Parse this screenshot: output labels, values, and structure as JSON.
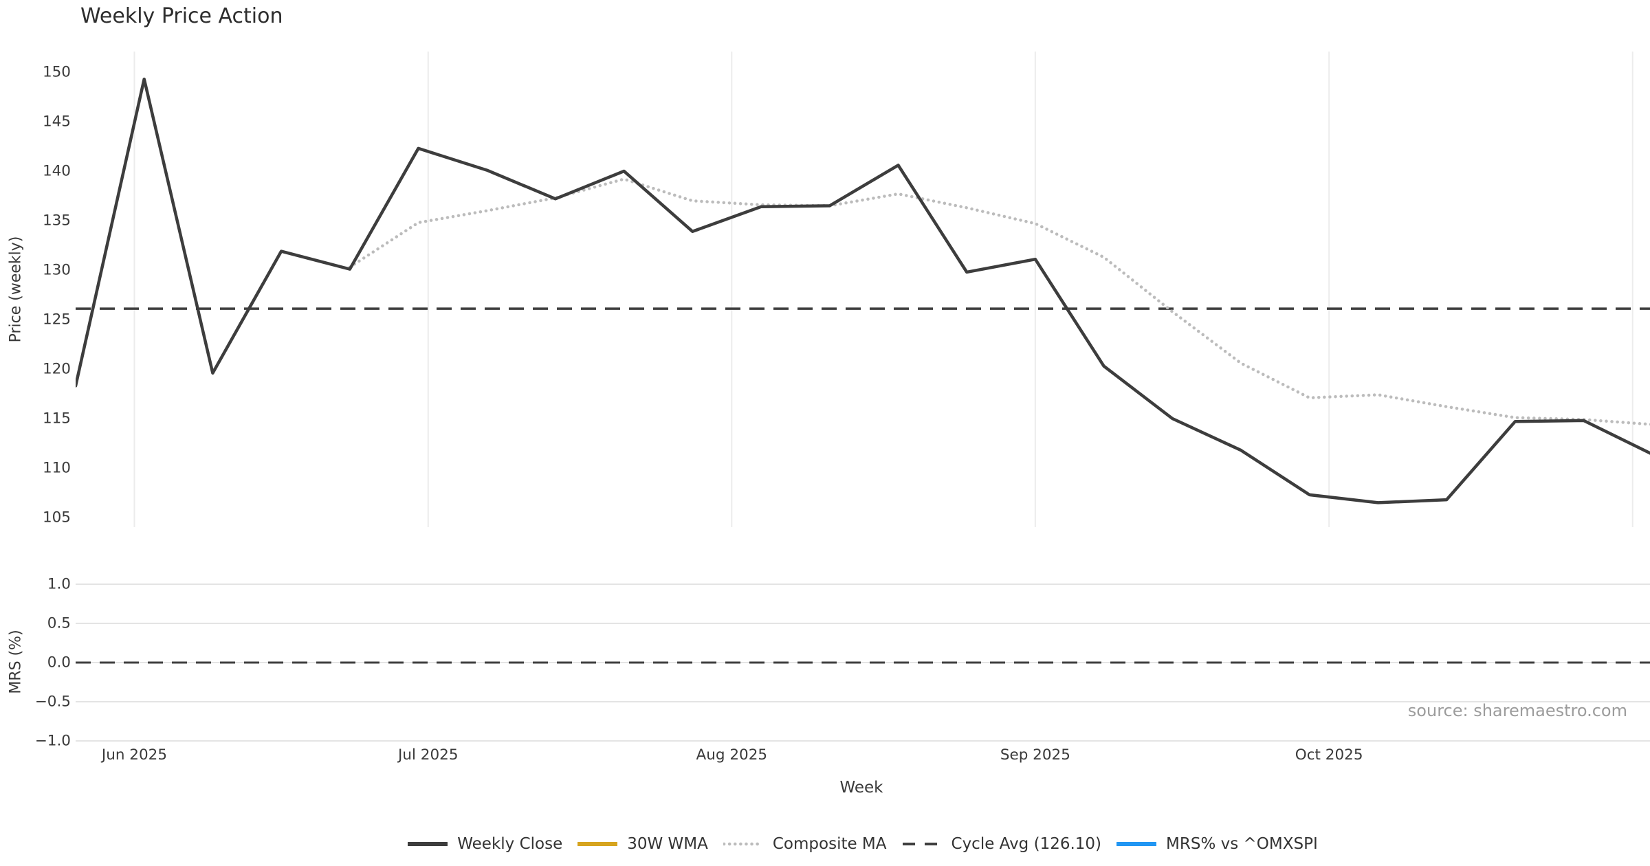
{
  "title": "Weekly Price Action",
  "source": "source: sharemaestro.com",
  "axes": {
    "x": {
      "label": "Week",
      "months": [
        {
          "label": "Jun 2025",
          "day": 6
        },
        {
          "label": "Jul 2025",
          "day": 36
        },
        {
          "label": "Aug 2025",
          "day": 67
        },
        {
          "label": "Sep 2025",
          "day": 98
        },
        {
          "label": "Oct 2025",
          "day": 128
        },
        {
          "label": "",
          "day": 159
        }
      ]
    },
    "price": {
      "label": "Price (weekly)",
      "ticks": [
        150,
        145,
        140,
        135,
        130,
        125,
        120,
        115,
        110,
        105
      ]
    },
    "mrs": {
      "label": "MRS (%)",
      "ticks": [
        {
          "label": "1.0",
          "value": 1.0
        },
        {
          "label": "0.5",
          "value": 0.5
        },
        {
          "label": "0.0",
          "value": 0.0
        },
        {
          "label": "−0.5",
          "value": -0.5
        },
        {
          "label": "−1.0",
          "value": -1.0
        }
      ]
    }
  },
  "legend": [
    {
      "label": "Weekly Close",
      "color": "#3d3d3d",
      "style": "solid"
    },
    {
      "label": "30W WMA",
      "color": "#d6a41f",
      "style": "solid"
    },
    {
      "label": "Composite MA",
      "color": "#bcbcbc",
      "style": "dotted"
    },
    {
      "label": "Cycle Avg (126.10)",
      "color": "#3f3f3f",
      "style": "dashed"
    },
    {
      "label": "MRS% vs ^OMXSPI",
      "color": "#2196f3",
      "style": "solid"
    }
  ],
  "chart_data": [
    {
      "type": "line",
      "title": "Weekly Price Action",
      "xlabel": "Week",
      "ylabel": "Price (weekly)",
      "x_tick_labels": [
        "Jun 2025",
        "Jul 2025",
        "Aug 2025",
        "Sep 2025",
        "Oct 2025"
      ],
      "ylim": [
        104,
        152.1
      ],
      "yticks": [
        105,
        110,
        115,
        120,
        125,
        130,
        135,
        140,
        145,
        150
      ],
      "grid": "x-only",
      "legend_position": "below-figure",
      "x_weeks": [
        "2025-05-26",
        "2025-06-02",
        "2025-06-09",
        "2025-06-16",
        "2025-06-23",
        "2025-06-30",
        "2025-07-07",
        "2025-07-14",
        "2025-07-21",
        "2025-07-28",
        "2025-08-04",
        "2025-08-11",
        "2025-08-18",
        "2025-08-25",
        "2025-09-01",
        "2025-09-08",
        "2025-09-15",
        "2025-09-22",
        "2025-09-29",
        "2025-10-06",
        "2025-10-13",
        "2025-10-20",
        "2025-10-27",
        "2025-11-03"
      ],
      "series": [
        {
          "name": "Weekly Close",
          "color": "#3d3d3d",
          "style": "solid",
          "values": [
            118.3,
            149.3,
            119.6,
            131.9,
            130.1,
            142.3,
            140.1,
            137.2,
            140.0,
            133.9,
            136.4,
            136.5,
            140.6,
            129.8,
            131.1,
            120.3,
            115.0,
            111.8,
            107.3,
            106.5,
            106.8,
            114.7,
            114.8,
            111.4
          ]
        },
        {
          "name": "30W WMA",
          "color": "#d6a41f",
          "style": "solid",
          "visible_on_chart": false,
          "values": []
        },
        {
          "name": "Composite MA",
          "color": "#bcbcbc",
          "style": "dotted",
          "values": [
            null,
            null,
            null,
            null,
            130.3,
            134.8,
            136.0,
            137.3,
            139.2,
            137.0,
            136.6,
            136.5,
            137.7,
            136.3,
            134.7,
            131.3,
            125.8,
            120.6,
            117.1,
            117.4,
            116.2,
            115.1,
            114.9,
            114.4
          ]
        },
        {
          "name": "Cycle Avg (126.10)",
          "color": "#3f3f3f",
          "style": "dashed",
          "constant": 126.1
        }
      ]
    },
    {
      "type": "line",
      "ylabel": "MRS (%)",
      "ylim": [
        -1.05,
        1.05
      ],
      "yticks": [
        -1.0,
        -0.5,
        0.0,
        0.5,
        1.0
      ],
      "grid": "y-only",
      "series": [
        {
          "name": "MRS% vs ^OMXSPI",
          "color": "#2196f3",
          "style": "solid",
          "visible_on_chart": false,
          "values": []
        },
        {
          "name": "Zero line",
          "color": "#3f3f3f",
          "style": "dashed",
          "constant": 0.0
        }
      ]
    }
  ]
}
